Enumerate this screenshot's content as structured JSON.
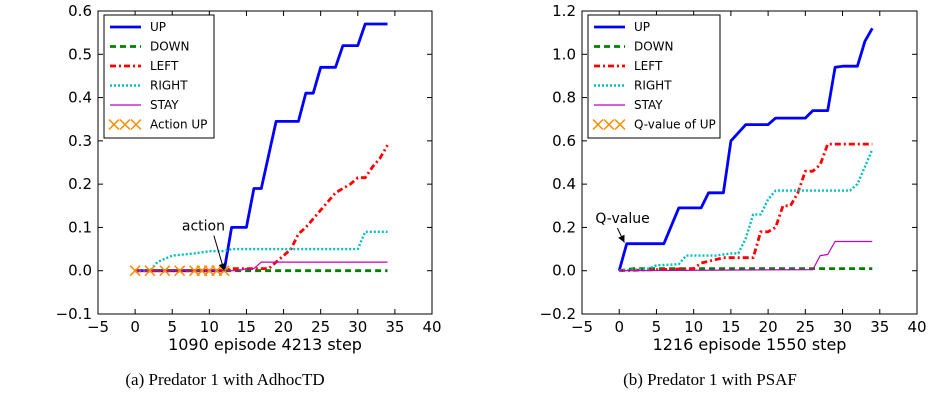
{
  "chart_data": [
    {
      "type": "line",
      "caption": "(a)  Predator 1 with AdhocTD",
      "xlabel": "1090 episode 4213 step",
      "xlim": [
        -5,
        40
      ],
      "ylim": [
        -0.1,
        0.6
      ],
      "xticks": [
        -5,
        0,
        5,
        10,
        15,
        20,
        25,
        30,
        35,
        40
      ],
      "yticks": [
        -0.1,
        0.0,
        0.1,
        0.2,
        0.3,
        0.4,
        0.5,
        0.6
      ],
      "xtick_labels": [
        "−5",
        "0",
        "5",
        "10",
        "15",
        "20",
        "25",
        "30",
        "35",
        "40"
      ],
      "ytick_labels": [
        "−0.1",
        "0.0",
        "0.1",
        "0.2",
        "0.3",
        "0.4",
        "0.5",
        "0.6"
      ],
      "legend_position": "top-left",
      "series": [
        {
          "name": "UP",
          "color": "#0000ff",
          "style": "solid",
          "width": 2.8,
          "points": [
            [
              0,
              0
            ],
            [
              12,
              0
            ],
            [
              13,
              0.1
            ],
            [
              15,
              0.1
            ],
            [
              16,
              0.19
            ],
            [
              17,
              0.19
            ],
            [
              19,
              0.345
            ],
            [
              22,
              0.345
            ],
            [
              23,
              0.41
            ],
            [
              24,
              0.41
            ],
            [
              25,
              0.47
            ],
            [
              27,
              0.47
            ],
            [
              28,
              0.52
            ],
            [
              30,
              0.52
            ],
            [
              31,
              0.57
            ],
            [
              34,
              0.57
            ]
          ]
        },
        {
          "name": "DOWN",
          "color": "#008000",
          "style": "dashed",
          "width": 2.8,
          "points": [
            [
              0,
              0
            ],
            [
              34,
              0
            ]
          ]
        },
        {
          "name": "LEFT",
          "color": "#ff0000",
          "style": "dashdot",
          "width": 2.8,
          "points": [
            [
              0,
              0
            ],
            [
              12,
              0
            ],
            [
              13,
              0.005
            ],
            [
              18,
              0.005
            ],
            [
              19,
              0.02
            ],
            [
              20,
              0.035
            ],
            [
              21,
              0.05
            ],
            [
              22,
              0.085
            ],
            [
              23,
              0.1
            ],
            [
              24,
              0.12
            ],
            [
              25,
              0.14
            ],
            [
              26,
              0.16
            ],
            [
              27,
              0.18
            ],
            [
              28,
              0.19
            ],
            [
              29,
              0.2
            ],
            [
              30,
              0.215
            ],
            [
              31,
              0.215
            ],
            [
              32,
              0.24
            ],
            [
              33,
              0.26
            ],
            [
              34,
              0.29
            ]
          ]
        },
        {
          "name": "RIGHT",
          "color": "#00bfbf",
          "style": "dotted",
          "width": 2.4,
          "points": [
            [
              0,
              0
            ],
            [
              2,
              0
            ],
            [
              3,
              0.02
            ],
            [
              5,
              0.035
            ],
            [
              8,
              0.04
            ],
            [
              10,
              0.045
            ],
            [
              12,
              0.045
            ],
            [
              13,
              0.05
            ],
            [
              30,
              0.05
            ],
            [
              31,
              0.09
            ],
            [
              34,
              0.09
            ]
          ]
        },
        {
          "name": "STAY",
          "color": "#bf00bf",
          "style": "solid",
          "width": 1.2,
          "points": [
            [
              0,
              0
            ],
            [
              14,
              0
            ],
            [
              15,
              0.005
            ],
            [
              16,
              0.005
            ],
            [
              17,
              0.02
            ],
            [
              34,
              0.02
            ]
          ]
        },
        {
          "name": "Action UP",
          "color": "#ff8c00",
          "style": "markers",
          "marker": "x",
          "points": [
            [
              0,
              0
            ],
            [
              2,
              0
            ],
            [
              4,
              0
            ],
            [
              6,
              0
            ],
            [
              8,
              0
            ],
            [
              9,
              0
            ],
            [
              10,
              0
            ],
            [
              11,
              0
            ],
            [
              12,
              0
            ]
          ]
        }
      ],
      "annotation": {
        "text": "action",
        "xy": [
          12,
          0.0
        ],
        "text_xy": [
          6.3,
          0.093
        ]
      }
    },
    {
      "type": "line",
      "caption": "(b)  Predator 1 with PSAF",
      "xlabel": "1216 episode 1550 step",
      "xlim": [
        -5,
        40
      ],
      "ylim": [
        -0.2,
        1.2
      ],
      "xticks": [
        -5,
        0,
        5,
        10,
        15,
        20,
        25,
        30,
        35,
        40
      ],
      "yticks": [
        -0.2,
        0.0,
        0.2,
        0.4,
        0.6,
        0.8,
        1.0,
        1.2
      ],
      "xtick_labels": [
        "−5",
        "0",
        "5",
        "10",
        "15",
        "20",
        "25",
        "30",
        "35",
        "40"
      ],
      "ytick_labels": [
        "−0.2",
        "0.0",
        "0.2",
        "0.4",
        "0.6",
        "0.8",
        "1.0",
        "1.2"
      ],
      "legend_position": "top-left",
      "series": [
        {
          "name": "UP",
          "color": "#0000ff",
          "style": "solid",
          "width": 2.8,
          "points": [
            [
              0,
              0
            ],
            [
              1,
              0.125
            ],
            [
              6,
              0.125
            ],
            [
              8,
              0.29
            ],
            [
              11,
              0.29
            ],
            [
              12,
              0.36
            ],
            [
              14,
              0.36
            ],
            [
              15,
              0.6
            ],
            [
              17,
              0.675
            ],
            [
              20,
              0.675
            ],
            [
              21,
              0.705
            ],
            [
              25,
              0.705
            ],
            [
              26,
              0.74
            ],
            [
              28,
              0.74
            ],
            [
              29,
              0.94
            ],
            [
              30,
              0.945
            ],
            [
              32,
              0.945
            ],
            [
              33,
              1.06
            ],
            [
              34,
              1.12
            ]
          ]
        },
        {
          "name": "DOWN",
          "color": "#008000",
          "style": "dashed",
          "width": 2.8,
          "points": [
            [
              0,
              0
            ],
            [
              2,
              0.01
            ],
            [
              34,
              0.01
            ]
          ]
        },
        {
          "name": "LEFT",
          "color": "#ff0000",
          "style": "dashdot",
          "width": 2.8,
          "points": [
            [
              0,
              0
            ],
            [
              10,
              0.01
            ],
            [
              11,
              0.035
            ],
            [
              14,
              0.06
            ],
            [
              18,
              0.06
            ],
            [
              19,
              0.18
            ],
            [
              20,
              0.18
            ],
            [
              21,
              0.2
            ],
            [
              22,
              0.3
            ],
            [
              23,
              0.3
            ],
            [
              24,
              0.36
            ],
            [
              25,
              0.46
            ],
            [
              26,
              0.46
            ],
            [
              27,
              0.49
            ],
            [
              28,
              0.585
            ],
            [
              34,
              0.585
            ]
          ]
        },
        {
          "name": "RIGHT",
          "color": "#00bfbf",
          "style": "dotted",
          "width": 2.4,
          "points": [
            [
              0,
              0
            ],
            [
              4,
              0.01
            ],
            [
              5,
              0.025
            ],
            [
              8,
              0.03
            ],
            [
              9,
              0.07
            ],
            [
              13,
              0.07
            ],
            [
              15,
              0.08
            ],
            [
              16,
              0.08
            ],
            [
              17,
              0.15
            ],
            [
              18,
              0.26
            ],
            [
              19,
              0.26
            ],
            [
              20,
              0.33
            ],
            [
              21,
              0.37
            ],
            [
              30,
              0.37
            ],
            [
              31,
              0.37
            ],
            [
              32,
              0.4
            ],
            [
              33,
              0.48
            ],
            [
              34,
              0.56
            ]
          ]
        },
        {
          "name": "STAY",
          "color": "#bf00bf",
          "style": "solid",
          "width": 1.2,
          "points": [
            [
              0,
              0
            ],
            [
              26,
              0.005
            ],
            [
              27,
              0.07
            ],
            [
              28,
              0.075
            ],
            [
              29,
              0.135
            ],
            [
              34,
              0.135
            ]
          ]
        },
        {
          "name": "Q-value of UP",
          "color": "#ff8c00",
          "style": "markers",
          "marker": "x",
          "points": []
        }
      ],
      "annotation": {
        "text": "Q-value",
        "xy": [
          0.7,
          0.13
        ],
        "text_xy": [
          -3.2,
          0.22
        ]
      }
    }
  ]
}
